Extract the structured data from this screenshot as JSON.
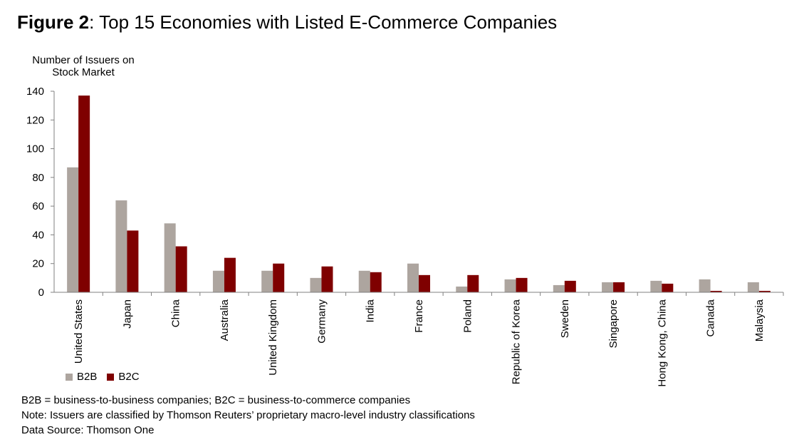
{
  "figure": {
    "label": "Figure 2",
    "title": ": Top 15 Economies with Listed E-Commerce Companies"
  },
  "chart_data": {
    "type": "bar",
    "ylabel_line1": "Number of Issuers on",
    "ylabel_line2": "Stock Market",
    "ylim": [
      0,
      140
    ],
    "yticks": [
      0,
      20,
      40,
      60,
      80,
      100,
      120,
      140
    ],
    "grid": false,
    "legend_position": "bottom-left",
    "categories": [
      "United States",
      "Japan",
      "China",
      "Australia",
      "United Kingdom",
      "Germany",
      "India",
      "France",
      "Poland",
      "Republic of Korea",
      "Sweden",
      "Singapore",
      "Hong Kong, China",
      "Canada",
      "Malaysia"
    ],
    "series": [
      {
        "name": "B2B",
        "color": "#ada59f",
        "values": [
          87,
          64,
          48,
          15,
          15,
          10,
          15,
          20,
          4,
          9,
          5,
          7,
          8,
          9,
          7
        ]
      },
      {
        "name": "B2C",
        "color": "#7f0000",
        "values": [
          137,
          43,
          32,
          24,
          20,
          18,
          14,
          12,
          12,
          10,
          8,
          7,
          6,
          1,
          1
        ]
      }
    ]
  },
  "notes": {
    "line1": "B2B = business-to-business companies; B2C = business-to-commerce companies",
    "line2": "Note: Issuers are classified by Thomson Reuters’ proprietary macro-level industry classifications",
    "line3": "Data Source: Thomson One"
  }
}
